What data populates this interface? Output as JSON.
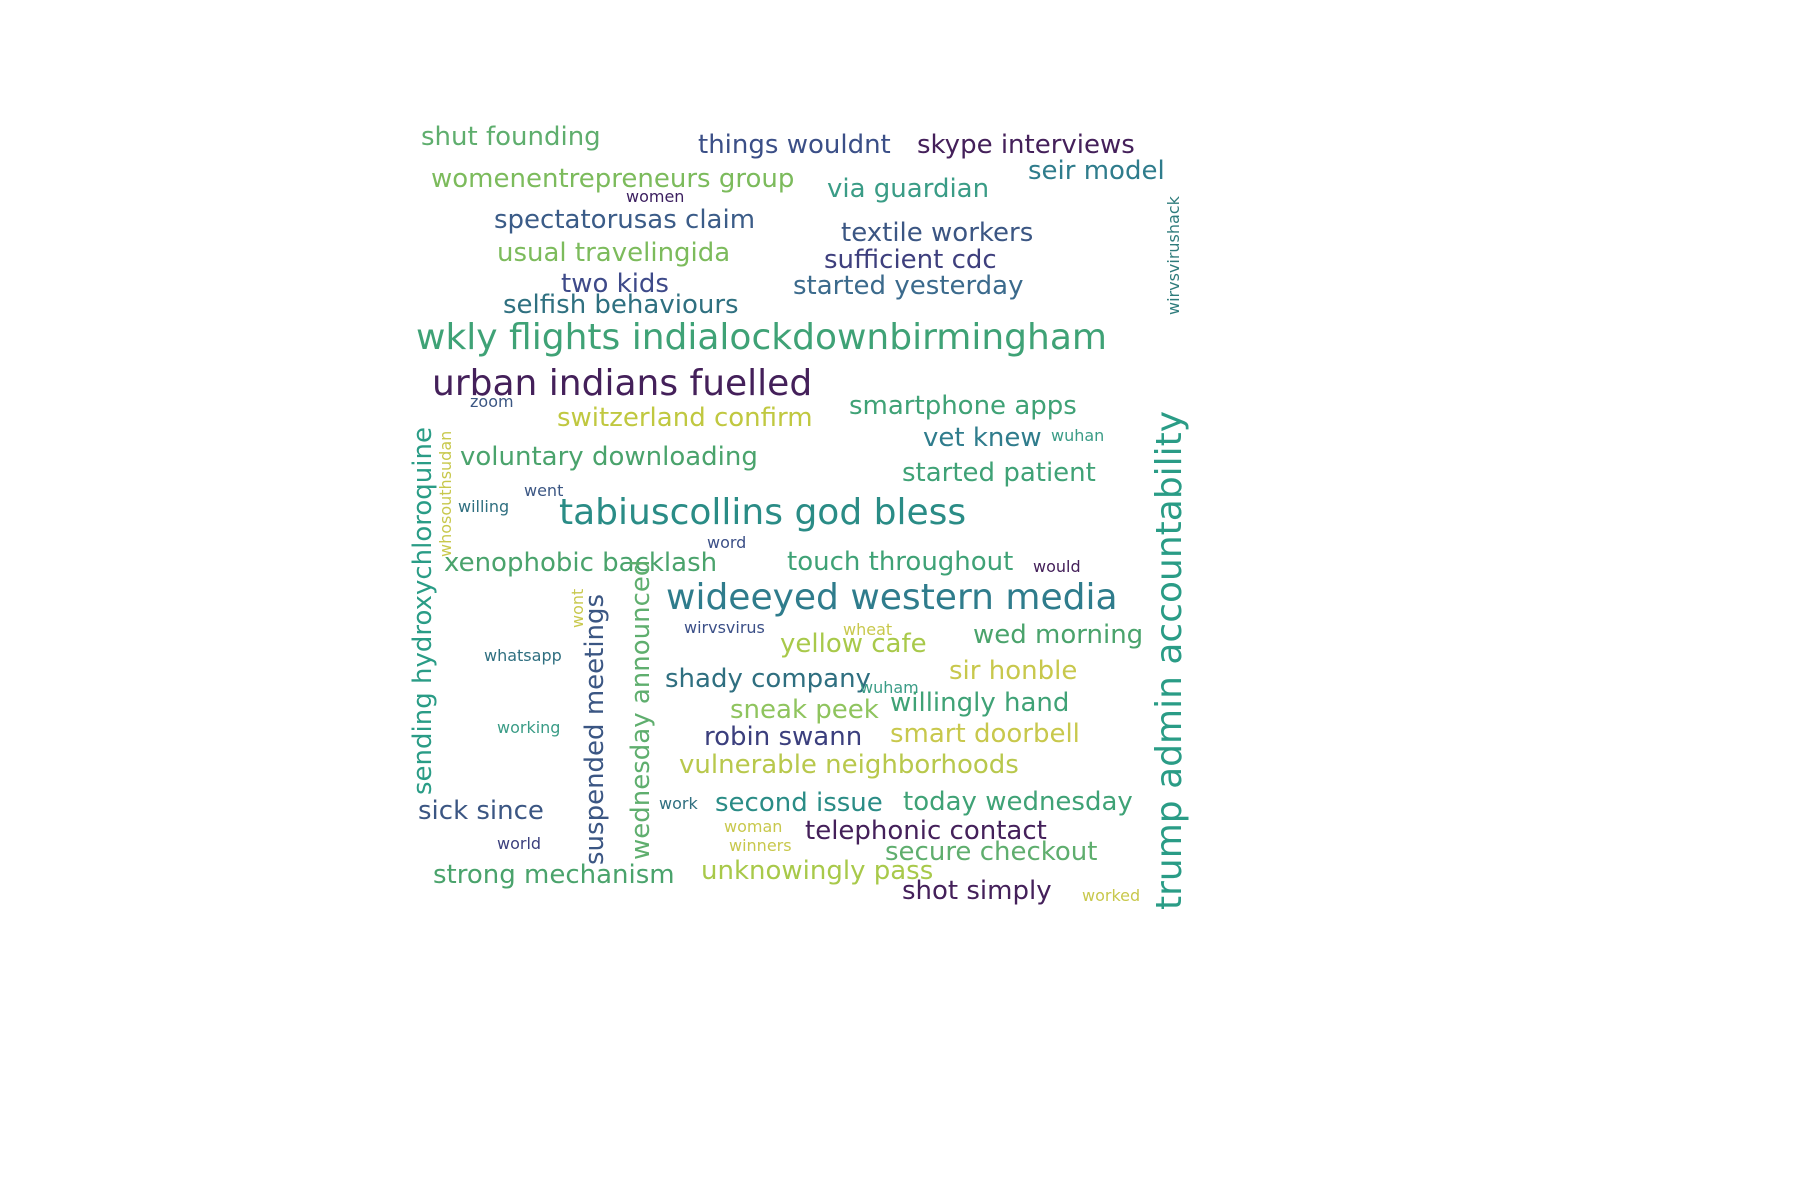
{
  "colors": {
    "c1": "#440154",
    "c2": "#46327e",
    "c3": "#365c8d",
    "c4": "#277f8e",
    "c5": "#1fa187",
    "c6": "#4ac16d",
    "c7": "#6ece58",
    "c8": "#9fda3a",
    "c9": "#bddf26",
    "c10": "#b5de2b",
    "deep": "#3b1e5f",
    "slate": "#3e4a89",
    "teal": "#2a7b8a",
    "green": "#3fa276",
    "lime": "#8fc45e",
    "olive": "#c8c84c",
    "yellowgreen": "#a8c94a"
  },
  "words": [
    "shut founding",
    "things wouldnt",
    "skype interviews",
    "womenentrepreneurs group",
    "seir model",
    "via guardian",
    "women",
    "spectatorusas claim",
    "textile workers",
    "usual travelingida",
    "sufficient cdc",
    "two kids",
    "started yesterday",
    "selfish behaviours",
    "wirvsvirushack",
    "wkly flights indialockdownbirmingham",
    "urban indians fuelled",
    "trump admin accountability",
    "zoom",
    "switzerland confirm",
    "smartphone apps",
    "vet knew",
    "wuhan",
    "sending hydroxychloroquine",
    "whosouthsudan",
    "voluntary downloading",
    "started patient",
    "went",
    "willing",
    "tabiuscollins god bless",
    "word",
    "xenophobic backlash",
    "touch throughout",
    "would",
    "wideeyed western media",
    "wont",
    "suspended meetings",
    "wednesday announced",
    "wirvsvirus",
    "wheat",
    "wed morning",
    "yellow cafe",
    "whatsapp",
    "sir honble",
    "shady company",
    "wuham",
    "willingly hand",
    "sneak peek",
    "working",
    "smart doorbell",
    "robin swann",
    "vulnerable neighborhoods",
    "sick since",
    "work",
    "second issue",
    "today wednesday",
    "woman",
    "telephonic contact",
    "world",
    "winners",
    "secure checkout",
    "strong mechanism",
    "unknowingly pass",
    "shot simply",
    "worked"
  ]
}
